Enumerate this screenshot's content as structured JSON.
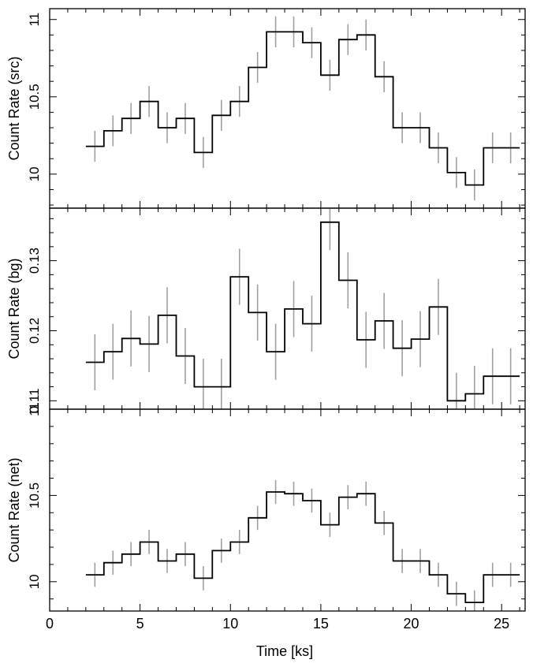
{
  "chart_data": [
    {
      "type": "line",
      "ylabel": "Count Rate (src)",
      "ylim": [
        9.78,
        11.07
      ],
      "yticks": [
        10,
        10.5,
        11
      ],
      "ytick_labels": [
        "10",
        "10.5",
        "11"
      ],
      "x": [
        2.5,
        3.5,
        4.5,
        5.5,
        6.5,
        7.5,
        8.5,
        9.5,
        10.5,
        11.5,
        12.5,
        13.5,
        14.5,
        15.5,
        16.5,
        17.5,
        18.5,
        19.5,
        20.5,
        21.5,
        22.5,
        23.5,
        24.5,
        25.5
      ],
      "values": [
        10.18,
        10.28,
        10.36,
        10.47,
        10.3,
        10.36,
        10.14,
        10.38,
        10.47,
        10.69,
        10.92,
        10.92,
        10.85,
        10.64,
        10.87,
        10.9,
        10.63,
        10.3,
        10.3,
        10.17,
        10.01,
        9.93,
        10.17,
        10.17
      ],
      "errors": [
        0.1,
        0.1,
        0.1,
        0.1,
        0.1,
        0.1,
        0.1,
        0.1,
        0.1,
        0.1,
        0.1,
        0.1,
        0.1,
        0.1,
        0.1,
        0.1,
        0.1,
        0.1,
        0.1,
        0.1,
        0.1,
        0.1,
        0.1,
        0.1
      ]
    },
    {
      "type": "line",
      "ylabel": "Count Rate (bg)",
      "ylim": [
        0.1088,
        0.1375
      ],
      "yticks": [
        0.11,
        0.12,
        0.13
      ],
      "ytick_labels": [
        "0.11",
        "0.12",
        "0.13"
      ],
      "x": [
        2.5,
        3.5,
        4.5,
        5.5,
        6.5,
        7.5,
        8.5,
        9.5,
        10.5,
        11.5,
        12.5,
        13.5,
        14.5,
        15.5,
        16.5,
        17.5,
        18.5,
        19.5,
        20.5,
        21.5,
        22.5,
        23.5,
        24.5,
        25.5
      ],
      "values": [
        0.1155,
        0.117,
        0.1189,
        0.1181,
        0.1222,
        0.1164,
        0.112,
        0.112,
        0.1277,
        0.1226,
        0.117,
        0.1231,
        0.121,
        0.1355,
        0.1272,
        0.1187,
        0.1214,
        0.1175,
        0.1188,
        0.1234,
        0.11,
        0.111,
        0.1135,
        0.1135
      ],
      "errors": [
        0.004,
        0.004,
        0.004,
        0.004,
        0.004,
        0.004,
        0.004,
        0.004,
        0.004,
        0.004,
        0.004,
        0.004,
        0.004,
        0.004,
        0.004,
        0.004,
        0.004,
        0.004,
        0.004,
        0.004,
        0.004,
        0.004,
        0.004,
        0.004
      ]
    },
    {
      "type": "line",
      "ylabel": "Count Rate (net)",
      "ylim": [
        9.83,
        11.0
      ],
      "yticks": [
        10,
        10.5,
        11
      ],
      "ytick_labels": [
        "10",
        "10.5",
        "11"
      ],
      "xlabel": "Time [ks]",
      "xlim": [
        0,
        26.3
      ],
      "xticks": [
        0,
        5,
        10,
        15,
        20,
        25
      ],
      "xtick_labels": [
        "0",
        "5",
        "10",
        "15",
        "20",
        "25"
      ],
      "x": [
        2.5,
        3.5,
        4.5,
        5.5,
        6.5,
        7.5,
        8.5,
        9.5,
        10.5,
        11.5,
        12.5,
        13.5,
        14.5,
        15.5,
        16.5,
        17.5,
        18.5,
        19.5,
        20.5,
        21.5,
        22.5,
        23.5,
        24.5,
        25.5
      ],
      "values": [
        10.04,
        10.11,
        10.16,
        10.23,
        10.12,
        10.16,
        10.02,
        10.18,
        10.23,
        10.37,
        10.52,
        10.51,
        10.47,
        10.33,
        10.49,
        10.51,
        10.34,
        10.12,
        10.12,
        10.04,
        9.93,
        9.88,
        10.04,
        10.04
      ],
      "errors": [
        0.07,
        0.07,
        0.07,
        0.07,
        0.07,
        0.07,
        0.07,
        0.07,
        0.07,
        0.07,
        0.07,
        0.07,
        0.07,
        0.07,
        0.07,
        0.07,
        0.07,
        0.07,
        0.07,
        0.07,
        0.07,
        0.07,
        0.07,
        0.07
      ]
    }
  ],
  "colors": {
    "histogram": "#000000",
    "errorbar": "#a0a0a0",
    "axis": "#000000"
  }
}
